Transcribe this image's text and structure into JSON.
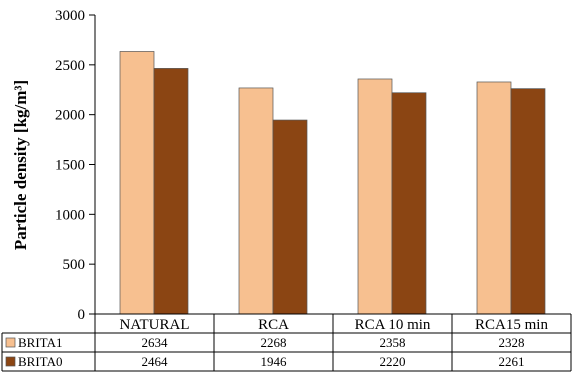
{
  "chart_data": {
    "type": "bar",
    "ylabel": "Particle density [kg/m³]",
    "ylim": [
      0,
      3000
    ],
    "yticks": [
      0,
      500,
      1000,
      1500,
      2000,
      2500,
      3000
    ],
    "categories": [
      "NATURAL",
      "RCA",
      "RCA  10 min",
      "RCA15 min"
    ],
    "grid": false,
    "legend": "data-table-left",
    "series": [
      {
        "name": "BRITA1",
        "color": "#F7C090",
        "values": [
          2634,
          2268,
          2358,
          2328
        ]
      },
      {
        "name": "BRITA0",
        "color": "#8B4513",
        "values": [
          2464,
          1946,
          2220,
          2261
        ]
      }
    ]
  }
}
